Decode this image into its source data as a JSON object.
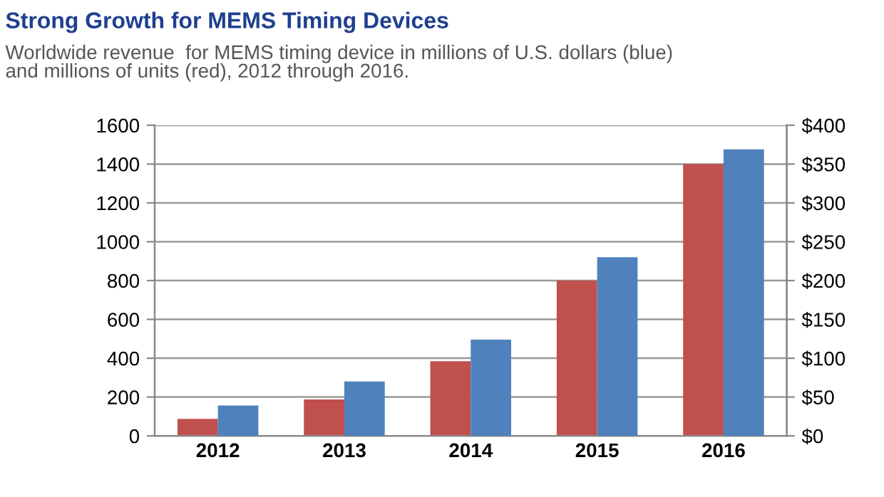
{
  "chart_data": {
    "type": "bar",
    "title": "Strong Growth for MEMS Timing Devices",
    "subtitle": "Worldwide revenue  for MEMS timing device in millions of U.S. dollars (blue)\nand millions of units (red), 2012 through 2016.",
    "categories": [
      "2012",
      "2013",
      "2014",
      "2015",
      "2016"
    ],
    "series": [
      {
        "color": "#c0504d",
        "values": [
          88,
          188,
          385,
          800,
          1400
        ]
      },
      {
        "color": "#4f81bd",
        "values": [
          39,
          70,
          124,
          230,
          369
        ],
        "axis": "y2"
      }
    ],
    "ylim": [
      0,
      1600
    ],
    "yticks": [
      0,
      200,
      400,
      600,
      800,
      1000,
      1200,
      1400,
      1600
    ],
    "y2lim": [
      0,
      400
    ],
    "y2ticks": [
      {
        "value": 0,
        "label": "$0"
      },
      {
        "value": 50,
        "label": "$50"
      },
      {
        "value": 100,
        "label": "$100"
      },
      {
        "value": 150,
        "label": "$150"
      },
      {
        "value": 200,
        "label": "$200"
      },
      {
        "value": 250,
        "label": "$250"
      },
      {
        "value": 300,
        "label": "$300"
      },
      {
        "value": 350,
        "label": "$350"
      },
      {
        "value": 400,
        "label": "$400"
      }
    ],
    "grid": "y"
  }
}
